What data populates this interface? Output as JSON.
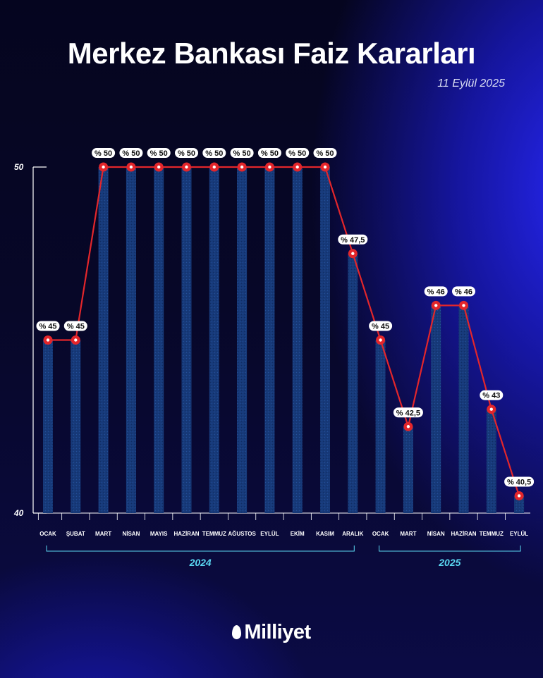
{
  "header": {
    "title": "Merkez Bankası Faiz Kararları",
    "date": "11 Eylül 2025"
  },
  "brand": {
    "name": "Milliyet",
    "icon": "flame-drop-icon"
  },
  "colors": {
    "bar": "#173a7a",
    "line": "#e3262b",
    "marker_fill": "#ffffff",
    "year_label": "#5ad6f0"
  },
  "chart_data": {
    "type": "bar",
    "categories": [
      "OCAK",
      "ŞUBAT",
      "MART",
      "NİSAN",
      "MAYIS",
      "HAZİRAN",
      "TEMMUZ",
      "AĞUSTOS",
      "EYLÜL",
      "EKİM",
      "KASIM",
      "ARALIK",
      "OCAK",
      "MART",
      "NİSAN",
      "HAZİRAN",
      "TEMMUZ",
      "EYLÜL"
    ],
    "values": [
      45,
      45,
      50,
      50,
      50,
      50,
      50,
      50,
      50,
      50,
      50,
      47.5,
      45,
      42.5,
      46,
      46,
      43,
      40.5
    ],
    "labels": [
      "% 45",
      "% 45",
      "% 50",
      "% 50",
      "% 50",
      "% 50",
      "% 50",
      "% 50",
      "% 50",
      "% 50",
      "% 50",
      "% 47,5",
      "% 45",
      "% 42,5",
      "% 46",
      "% 46",
      "% 43",
      "% 40,5"
    ],
    "ylim": [
      40,
      50
    ],
    "yticks": [
      {
        "value": 50,
        "label": "50"
      },
      {
        "value": 40,
        "label": "40"
      }
    ],
    "groups": [
      {
        "label": "2024",
        "start": 0,
        "end": 11
      },
      {
        "label": "2025",
        "start": 12,
        "end": 17
      }
    ],
    "overlay_line": true,
    "grid": false,
    "legend": "none",
    "title": "Merkez Bankası Faiz Kararları"
  }
}
